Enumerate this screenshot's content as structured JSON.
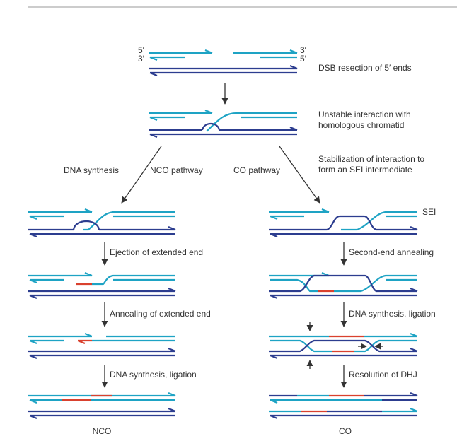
{
  "colors": {
    "top_strand": "#1ea3c4",
    "bottom_strand": "#2c3d8f",
    "new_synthesis": "#d9412e",
    "text": "#333333",
    "rule": "#9a9a9a"
  },
  "labels": {
    "end_5_top": "5′",
    "end_3_bottom": "3′",
    "end_3_top": "3′",
    "end_5_bottom": "5′",
    "step_dsb": "DSB resection of 5′ ends",
    "step_unstable_1": "Unstable interaction with",
    "step_unstable_2": "homologous chromatid",
    "step_stabilization_1": "Stabilization of interaction to",
    "step_stabilization_2": "form an SEI intermediate",
    "dna_synthesis": "DNA synthesis",
    "nco_pathway": "NCO pathway",
    "co_pathway": "CO pathway",
    "sei": "SEI",
    "ejection": "Ejection of extended end",
    "annealing": "Annealing of extended end",
    "nco_synthesis": "DNA synthesis, ligation",
    "second_end": "Second-end annealing",
    "co_synthesis": "DNA synthesis, ligation",
    "resolution": "Resolution of DHJ",
    "nco_product": "NCO",
    "co_product": "CO"
  }
}
